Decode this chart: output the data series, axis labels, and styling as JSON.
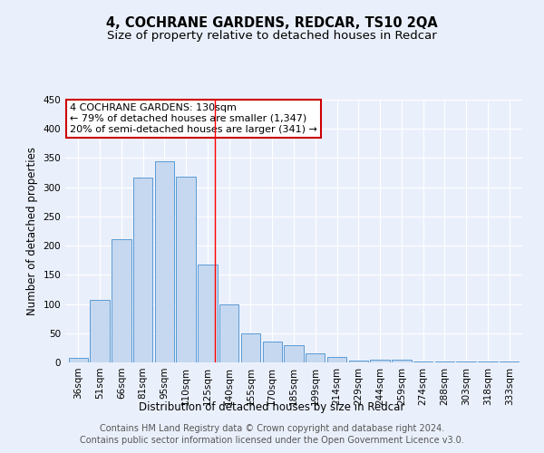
{
  "title": "4, COCHRANE GARDENS, REDCAR, TS10 2QA",
  "subtitle": "Size of property relative to detached houses in Redcar",
  "xlabel": "Distribution of detached houses by size in Redcar",
  "ylabel": "Number of detached properties",
  "categories": [
    "36sqm",
    "51sqm",
    "66sqm",
    "81sqm",
    "95sqm",
    "110sqm",
    "125sqm",
    "140sqm",
    "155sqm",
    "170sqm",
    "185sqm",
    "199sqm",
    "214sqm",
    "229sqm",
    "244sqm",
    "259sqm",
    "274sqm",
    "288sqm",
    "303sqm",
    "318sqm",
    "333sqm"
  ],
  "values": [
    7,
    107,
    211,
    317,
    344,
    318,
    168,
    99,
    50,
    36,
    29,
    16,
    9,
    3,
    5,
    4,
    2,
    1,
    1,
    1,
    1
  ],
  "bar_color": "#c5d8f0",
  "bar_edge_color": "#5b9bd5",
  "background_color": "#eaf0fb",
  "grid_color": "#ffffff",
  "annotation_line_label": "4 COCHRANE GARDENS: 130sqm",
  "annotation_smaller": "← 79% of detached houses are smaller (1,347)",
  "annotation_larger": "20% of semi-detached houses are larger (341) →",
  "annotation_box_color": "#ffffff",
  "annotation_box_edge_color": "#cc0000",
  "footer_line1": "Contains HM Land Registry data © Crown copyright and database right 2024.",
  "footer_line2": "Contains public sector information licensed under the Open Government Licence v3.0.",
  "ylim": [
    0,
    450
  ],
  "yticks": [
    0,
    50,
    100,
    150,
    200,
    250,
    300,
    350,
    400,
    450
  ],
  "title_fontsize": 10.5,
  "subtitle_fontsize": 9.5,
  "xlabel_fontsize": 8.5,
  "ylabel_fontsize": 8.5,
  "tick_fontsize": 7.5,
  "annotation_fontsize": 8,
  "footer_fontsize": 7
}
